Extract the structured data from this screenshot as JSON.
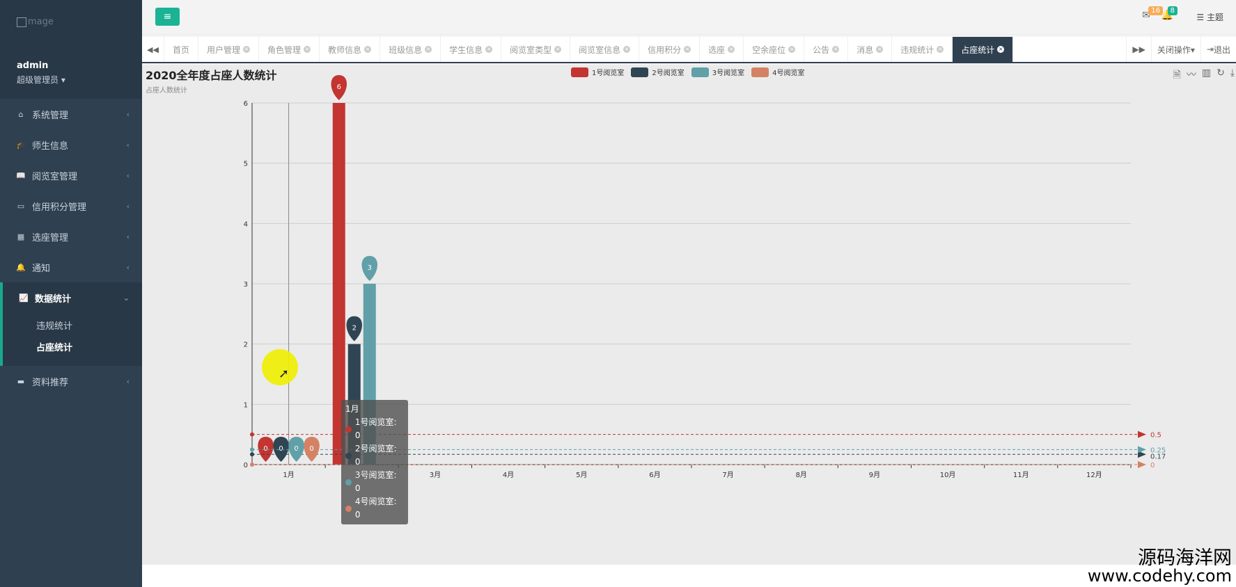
{
  "sidebar": {
    "logo_text": "mage",
    "user": "admin",
    "role": "超级管理员 ▾",
    "items": [
      {
        "label": "系统管理",
        "icon": "home-icon"
      },
      {
        "label": "师生信息",
        "icon": "graduation-cap-icon"
      },
      {
        "label": "阅览室管理",
        "icon": "book-icon"
      },
      {
        "label": "信用积分管理",
        "icon": "credit-card-icon"
      },
      {
        "label": "选座管理",
        "icon": "calendar-icon"
      },
      {
        "label": "通知",
        "icon": "bell-icon"
      },
      {
        "label": "数据统计",
        "icon": "line-chart-icon",
        "expanded": true
      },
      {
        "label": "资料推荐",
        "icon": "book-open-icon"
      }
    ],
    "subitems": [
      {
        "label": "违规统计"
      },
      {
        "label": "占座统计",
        "current": true
      }
    ]
  },
  "topbar": {
    "toggle": "≡",
    "mail_badge": "16",
    "bell_badge": "8",
    "theme": "主题"
  },
  "tabs": [
    "首页",
    "用户管理",
    "角色管理",
    "教师信息",
    "班级信息",
    "学生信息",
    "阅览室类型",
    "阅览室信息",
    "信用积分",
    "选座",
    "空余座位",
    "公告",
    "消息",
    "违规统计",
    "占座统计"
  ],
  "active_tab": "占座统计",
  "tab_actions": {
    "close_ops": "关闭操作▾",
    "logout": "退出"
  },
  "chart_data": {
    "type": "bar",
    "title": "2020全年度占座人数统计",
    "subtitle": "占座人数统计",
    "categories": [
      "1月",
      "2月",
      "3月",
      "4月",
      "5月",
      "6月",
      "7月",
      "8月",
      "9月",
      "10月",
      "11月",
      "12月"
    ],
    "ylim": [
      0,
      6
    ],
    "series": [
      {
        "name": "1号阅览室",
        "color": "#c23531",
        "values": [
          0,
          6,
          0,
          0,
          0,
          0,
          0,
          0,
          0,
          0,
          0,
          0
        ],
        "avg": 0.5
      },
      {
        "name": "2号阅览室",
        "color": "#2f4554",
        "values": [
          0,
          2,
          0,
          0,
          0,
          0,
          0,
          0,
          0,
          0,
          0,
          0
        ],
        "avg": 0.17
      },
      {
        "name": "3号阅览室",
        "color": "#61a0a8",
        "values": [
          0,
          3,
          0,
          0,
          0,
          0,
          0,
          0,
          0,
          0,
          0,
          0
        ],
        "avg": 0.25
      },
      {
        "name": "4号阅览室",
        "color": "#d48265",
        "values": [
          0,
          0,
          0,
          0,
          0,
          0,
          0,
          0,
          0,
          0,
          0,
          0
        ],
        "avg": 0
      }
    ],
    "avg_labels": [
      "0.5",
      "0.25",
      "0.17",
      "0"
    ],
    "grid": true,
    "legend": "top-center"
  },
  "tooltip": {
    "title": "1月",
    "rows": [
      "1号阅览室: 0",
      "2号阅览室: 0",
      "3号阅览室: 0",
      "4号阅览室: 0"
    ]
  },
  "watermark": {
    "line1": "源码海洋网",
    "line2": "www.codehy.com"
  }
}
